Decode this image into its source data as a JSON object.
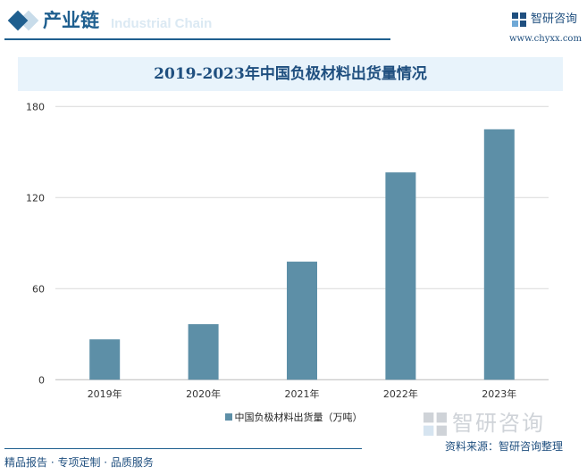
{
  "header": {
    "section_title": "产业链",
    "section_subtitle": "Industrial Chain",
    "brand_name": "智研咨询",
    "brand_url": "www.chyxx.com"
  },
  "chart_data": {
    "type": "bar",
    "title": "2019-2023年中国负极材料出货量情况",
    "categories": [
      "2019年",
      "2020年",
      "2021年",
      "2022年",
      "2023年"
    ],
    "series": [
      {
        "name": "中国负极材料出货量（万吨）",
        "values": [
          26.6,
          36.6,
          77.8,
          136.6,
          165
        ],
        "color": "#5d8fa7"
      }
    ],
    "yticks": [
      0,
      60,
      120,
      180
    ],
    "ylim": [
      0,
      180
    ],
    "grid": true,
    "legend_position": "bottom"
  },
  "footer": {
    "watermark": "智研咨询",
    "source": "资料来源：智研咨询整理",
    "slogan": "精品报告 · 专项定制 · 品质服务"
  }
}
